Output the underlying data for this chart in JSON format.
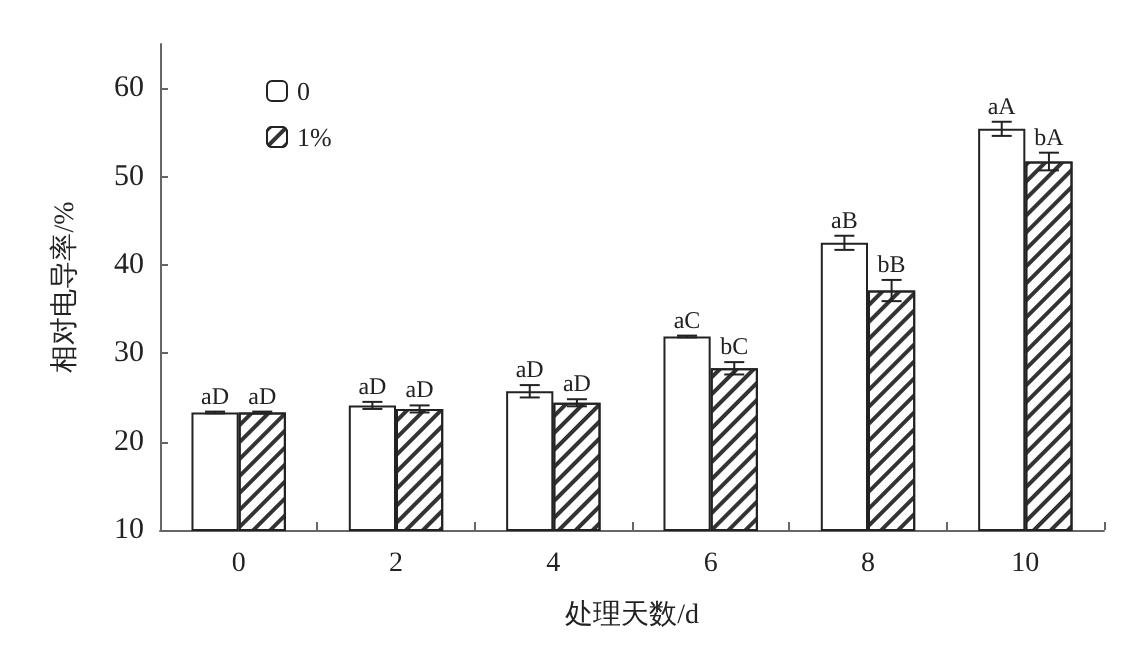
{
  "chart_data": {
    "type": "bar",
    "xlabel": "处理天数/d",
    "ylabel": "相对电导率/%",
    "categories": [
      "0",
      "2",
      "4",
      "6",
      "8",
      "10"
    ],
    "series": [
      {
        "name": "0",
        "color": "#ffffff",
        "values": [
          23.3,
          24.1,
          25.7,
          31.9,
          42.5,
          55.4
        ],
        "errors": [
          0.1,
          0.4,
          0.7,
          0.1,
          0.8,
          0.8
        ],
        "value_labels": [
          "aD",
          "aD",
          "aD",
          "aC",
          "aB",
          "aA"
        ]
      },
      {
        "name": "1%",
        "color": "#ffffff",
        "values": [
          23.3,
          23.7,
          24.4,
          28.3,
          37.1,
          51.7
        ],
        "errors": [
          0.1,
          0.4,
          0.4,
          0.7,
          1.2,
          1.0
        ],
        "value_labels": [
          "aD",
          "aD",
          "aD",
          "bC",
          "bB",
          "bA"
        ]
      }
    ],
    "ylim": [
      10,
      65
    ],
    "yticks": [
      10,
      20,
      30,
      40,
      50,
      60
    ],
    "grid": false,
    "legend": "top left"
  }
}
